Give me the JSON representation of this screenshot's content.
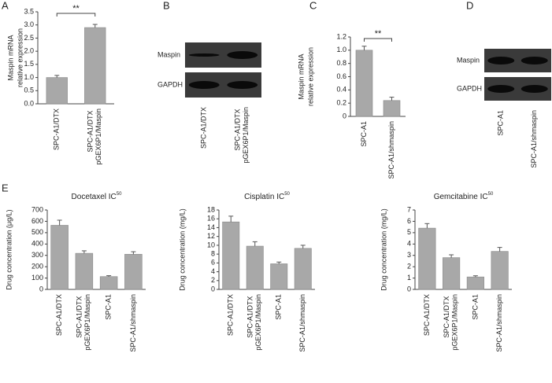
{
  "chart_data": [
    {
      "type": "bar",
      "panel": "A",
      "ylabel": [
        "Maspin mRNA",
        "relative expression"
      ],
      "categories": [
        "SPC-A1/DTX",
        "SPC-A1/DTX pGEX6P1/Maspin"
      ],
      "values": [
        1.0,
        2.9
      ],
      "errors": [
        0.08,
        0.12
      ],
      "ylim": [
        0,
        3.5
      ],
      "yticks": [
        {
          "value": 0,
          "label": "0.0"
        },
        0.5,
        {
          "value": 1,
          "label": "1.0"
        },
        1.5,
        {
          "value": 2,
          "label": "2.0"
        },
        2.5,
        {
          "value": 3,
          "label": "3.0"
        },
        3.5
      ],
      "annotation": "**",
      "color": "#a8a8a8"
    },
    {
      "type": "blot",
      "panel": "B",
      "rows": [
        "Maspin",
        "GAPDH"
      ],
      "lanes": [
        "SPC-A1/DTX",
        "SPC-A1/DTX pGEX6P1/Maspin"
      ]
    },
    {
      "type": "bar",
      "panel": "C",
      "ylabel": [
        "Maspin mRNA",
        "relative expression"
      ],
      "categories": [
        "SPC-A1",
        "SPC-A1/shmaspin"
      ],
      "values": [
        1.0,
        0.24
      ],
      "errors": [
        0.06,
        0.05
      ],
      "ylim": [
        0,
        1.2
      ],
      "yticks": [
        0,
        0.2,
        0.4,
        0.6,
        0.8,
        {
          "value": 1,
          "label": "1.0"
        },
        1.2
      ],
      "annotation": "**",
      "color": "#a8a8a8"
    },
    {
      "type": "blot",
      "panel": "D",
      "rows": [
        "Maspin",
        "GAPDH"
      ],
      "lanes": [
        "SPC-A1",
        "SPC-A1/shmaspin"
      ]
    },
    {
      "type": "bar",
      "panel": "E",
      "title": "Docetaxel IC",
      "title_sup": "50",
      "ylabel": [
        "Drug concentration (μg/L)"
      ],
      "categories": [
        "SPC-A1/DTX",
        "SPC-A1/DTX pGEX6P1/Maspin",
        "SPC-A1",
        "SPC-A1/shmaspin"
      ],
      "values": [
        565,
        318,
        113,
        310
      ],
      "errors": [
        45,
        22,
        8,
        22
      ],
      "ylim": [
        0,
        700
      ],
      "yticks": [
        0,
        100,
        200,
        300,
        400,
        500,
        600,
        700
      ],
      "color": "#a8a8a8"
    },
    {
      "type": "bar",
      "title": "Cisplatin IC",
      "title_sup": "50",
      "ylabel": [
        "Drug concentration (mg/L)"
      ],
      "categories": [
        "SPC-A1/DTX",
        "SPC-A1/DTX pGEX6P1/Maspin",
        "SPC-A1",
        "SPC-A1/shmaspin"
      ],
      "values": [
        15.3,
        9.8,
        5.8,
        9.3
      ],
      "errors": [
        1.3,
        1.0,
        0.4,
        0.7
      ],
      "ylim": [
        0,
        18
      ],
      "yticks": [
        0,
        2,
        4,
        6,
        8,
        10,
        12,
        14,
        16,
        18
      ],
      "color": "#a8a8a8"
    },
    {
      "type": "bar",
      "title": "Gemcitabine IC",
      "title_sup": "50",
      "ylabel": [
        "Drug concentration (mg/L)"
      ],
      "categories": [
        "SPC-A1/DTX",
        "SPC-A1/DTX pGEX6P1/Maspin",
        "SPC-A1",
        "SPC-A1/shmaspin"
      ],
      "values": [
        5.4,
        2.8,
        1.1,
        3.35
      ],
      "errors": [
        0.4,
        0.25,
        0.1,
        0.35
      ],
      "ylim": [
        0,
        7
      ],
      "yticks": [
        0,
        1,
        2,
        3,
        4,
        5,
        6,
        7
      ],
      "color": "#a8a8a8"
    }
  ]
}
